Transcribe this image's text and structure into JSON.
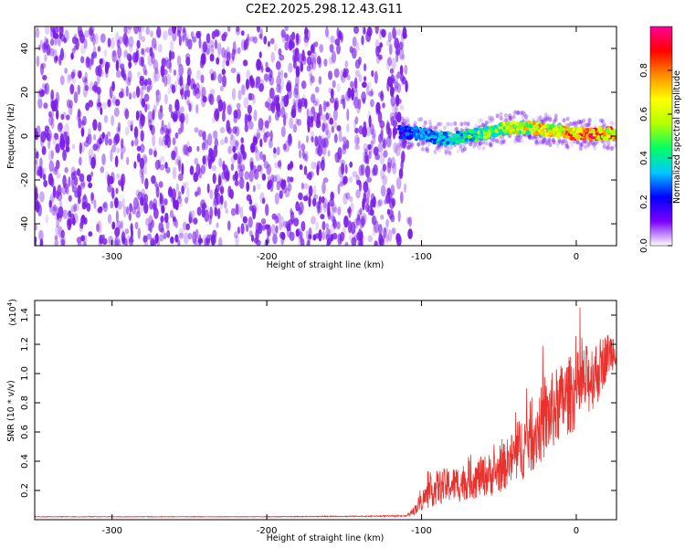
{
  "title": "C2E2.2025.298.12.43.G11",
  "chart_data": [
    {
      "type": "heatmap",
      "xlabel": "Height of straight line (km)",
      "ylabel": "Frequency (Hz)",
      "xlim": [
        -350,
        26
      ],
      "ylim": [
        -50,
        50
      ],
      "x_ticks": [
        "-300",
        "-200",
        "-100",
        "0"
      ],
      "x_tick_values": [
        -300,
        -200,
        -100,
        0
      ],
      "y_ticks": [
        "-40",
        "-20",
        "0",
        "20",
        "40"
      ],
      "y_tick_values": [
        -40,
        -20,
        0,
        20,
        40
      ],
      "colorbar": {
        "label": "Normalized spectral amplitude",
        "range": [
          0,
          1
        ],
        "ticks": [
          "0.0",
          "0.2",
          "0.4",
          "0.6",
          "0.8"
        ],
        "tick_values": [
          0.0,
          0.2,
          0.4,
          0.6,
          0.8
        ],
        "colors": [
          "#ffffff",
          "#7b00ff",
          "#0000ff",
          "#00c8ff",
          "#00ff64",
          "#b4ff00",
          "#ffff00",
          "#ff8c00",
          "#ff0000",
          "#ff0096"
        ]
      },
      "noise_region": {
        "x_range": [
          -350,
          -110
        ],
        "freq_range": [
          -50,
          50
        ],
        "amplitude": 0.05
      },
      "signal_track": [
        {
          "x": -115,
          "freq": 2,
          "amp": 0.25
        },
        {
          "x": -100,
          "freq": 1,
          "amp": 0.32
        },
        {
          "x": -90,
          "freq": -1,
          "amp": 0.38
        },
        {
          "x": -80,
          "freq": -1,
          "amp": 0.42
        },
        {
          "x": -70,
          "freq": 0,
          "amp": 0.47
        },
        {
          "x": -60,
          "freq": 1,
          "amp": 0.55
        },
        {
          "x": -50,
          "freq": 3,
          "amp": 0.6
        },
        {
          "x": -40,
          "freq": 4,
          "amp": 0.68
        },
        {
          "x": -30,
          "freq": 4,
          "amp": 0.72
        },
        {
          "x": -20,
          "freq": 3,
          "amp": 0.78
        },
        {
          "x": -10,
          "freq": 2,
          "amp": 0.84
        },
        {
          "x": 0,
          "freq": 1,
          "amp": 0.9
        },
        {
          "x": 10,
          "freq": 1,
          "amp": 0.94
        },
        {
          "x": 20,
          "freq": 1,
          "amp": 0.88
        }
      ]
    },
    {
      "type": "line",
      "xlabel": "Height of straight line (km)",
      "ylabel": "SNR (10 * v/v)",
      "y_multiplier": "(x10",
      "y_multiplier_exp": "4",
      "y_multiplier_close": ")",
      "xlim": [
        -350,
        26
      ],
      "ylim": [
        0,
        15000
      ],
      "x_ticks": [
        "-300",
        "-200",
        "-100",
        "0"
      ],
      "x_tick_values": [
        -300,
        -200,
        -100,
        0
      ],
      "y_ticks": [
        "0.2",
        "0.4",
        "0.6",
        "0.8",
        "1.0",
        "1.2",
        "1.4"
      ],
      "y_tick_values": [
        2000,
        4000,
        6000,
        8000,
        10000,
        12000,
        14000
      ],
      "color": "#e8322e",
      "series": [
        {
          "name": "SNR",
          "x": [
            -350,
            -300,
            -200,
            -110,
            -105,
            -100,
            -95,
            -90,
            -85,
            -80,
            -75,
            -70,
            -65,
            -60,
            -55,
            -50,
            -45,
            -40,
            -35,
            -30,
            -25,
            -20,
            -15,
            -10,
            -5,
            0,
            5,
            10,
            15,
            20,
            26
          ],
          "y": [
            200,
            200,
            200,
            250,
            600,
            1300,
            1800,
            2200,
            2300,
            2400,
            2500,
            2700,
            2800,
            3000,
            3100,
            3300,
            3800,
            4300,
            5000,
            5600,
            6200,
            6800,
            7500,
            8000,
            8500,
            8800,
            9300,
            9800,
            10300,
            11300,
            11800
          ],
          "spread": [
            20,
            20,
            20,
            40,
            300,
            700,
            1000,
            1200,
            1200,
            1200,
            1300,
            1300,
            1400,
            1400,
            1500,
            1500,
            1700,
            2000,
            2300,
            2500,
            2600,
            2700,
            2700,
            2700,
            2700,
            2700,
            2600,
            2400,
            2200,
            1500,
            1300
          ]
        }
      ]
    }
  ]
}
